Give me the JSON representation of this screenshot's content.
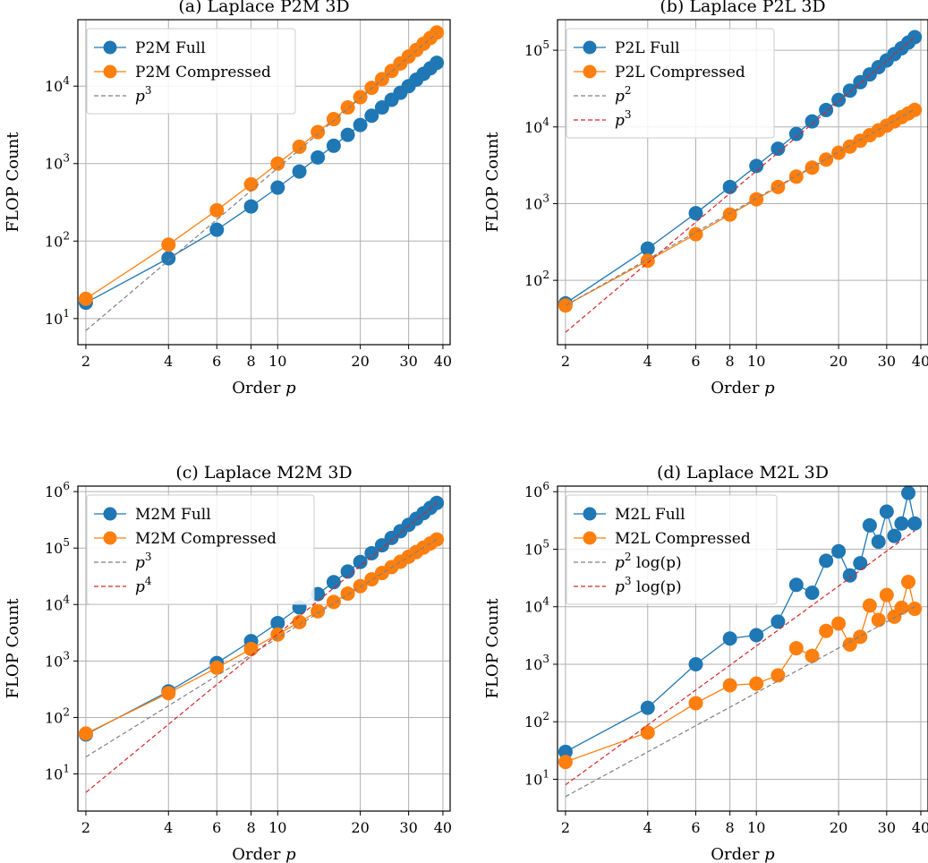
{
  "chart_data": [
    {
      "type": "line",
      "title": "(a) Laplace P2M 3D",
      "xlabel": "Order p",
      "ylabel": "FLOP Count",
      "xscale": "log",
      "yscale": "log",
      "xlim": [
        1.87,
        42.5
      ],
      "ylim": [
        4.6,
        72000
      ],
      "xticks": [
        {
          "value": 2,
          "label": "2"
        },
        {
          "value": 4,
          "label": "4"
        },
        {
          "value": 6,
          "label": "6"
        },
        {
          "value": 8,
          "label": "8"
        },
        {
          "value": 10,
          "label": "10"
        },
        {
          "value": 20,
          "label": "20"
        },
        {
          "value": 30,
          "label": "30"
        },
        {
          "value": 40,
          "label": "40"
        }
      ],
      "yticks": [
        {
          "value": 10,
          "base": "10",
          "exp": "1"
        },
        {
          "value": 100,
          "base": "10",
          "exp": "2"
        },
        {
          "value": 1000,
          "base": "10",
          "exp": "3"
        },
        {
          "value": 10000,
          "base": "10",
          "exp": "4"
        }
      ],
      "grid": true,
      "legend_position": "top-left",
      "x": [
        2,
        4,
        6,
        8,
        10,
        12,
        14,
        16,
        18,
        20,
        22,
        24,
        26,
        28,
        30,
        32,
        34,
        36,
        38
      ],
      "series": [
        {
          "name": "P2M Full",
          "style": "marker",
          "color": "#1f77b4",
          "values": [
            16,
            60,
            140,
            280,
            490,
            790,
            1200,
            1700,
            2350,
            3150,
            4150,
            5300,
            6650,
            8200,
            10000,
            12100,
            14400,
            17000,
            20000
          ]
        },
        {
          "name": "P2M Compressed",
          "style": "marker",
          "color": "#ff7f0e",
          "values": [
            18,
            90,
            250,
            540,
            1000,
            1650,
            2550,
            3750,
            5300,
            7200,
            9500,
            12300,
            15700,
            19600,
            24100,
            29300,
            35200,
            41800,
            49200
          ]
        },
        {
          "name": "p",
          "sup": "3",
          "style": "dashed",
          "color": "#808080",
          "x": [
            2,
            38
          ],
          "values": [
            7,
            48000
          ]
        }
      ]
    },
    {
      "type": "line",
      "title": "(b) Laplace P2L 3D",
      "xlabel": "Order p",
      "ylabel": "FLOP Count",
      "xscale": "log",
      "yscale": "log",
      "xlim": [
        1.87,
        42.5
      ],
      "ylim": [
        14.5,
        250000
      ],
      "xticks": [
        {
          "value": 2,
          "label": "2"
        },
        {
          "value": 4,
          "label": "4"
        },
        {
          "value": 6,
          "label": "6"
        },
        {
          "value": 8,
          "label": "8"
        },
        {
          "value": 10,
          "label": "10"
        },
        {
          "value": 20,
          "label": "20"
        },
        {
          "value": 30,
          "label": "30"
        },
        {
          "value": 40,
          "label": "40"
        }
      ],
      "yticks": [
        {
          "value": 100,
          "base": "10",
          "exp": "2"
        },
        {
          "value": 1000,
          "base": "10",
          "exp": "3"
        },
        {
          "value": 10000,
          "base": "10",
          "exp": "4"
        },
        {
          "value": 100000,
          "base": "10",
          "exp": "5"
        }
      ],
      "grid": true,
      "legend_position": "top-left",
      "x": [
        2,
        4,
        6,
        8,
        10,
        12,
        14,
        16,
        18,
        20,
        22,
        24,
        26,
        28,
        30,
        32,
        34,
        36,
        38
      ],
      "series": [
        {
          "name": "P2L Full",
          "style": "marker",
          "color": "#1f77b4",
          "values": [
            50,
            260,
            750,
            1650,
            3100,
            5200,
            8100,
            11800,
            16600,
            22500,
            29700,
            38300,
            48400,
            60200,
            73700,
            89000,
            106000,
            126000,
            148000
          ]
        },
        {
          "name": "P2L Compressed",
          "style": "marker",
          "color": "#ff7f0e",
          "values": [
            47,
            180,
            400,
            720,
            1140,
            1650,
            2250,
            2950,
            3750,
            4600,
            5550,
            6600,
            7800,
            9050,
            10400,
            11800,
            13400,
            15000,
            16700
          ]
        },
        {
          "name": "p",
          "sup": "2",
          "style": "dashed",
          "color": "#808080",
          "x": [
            2,
            38
          ],
          "values": [
            47,
            17000
          ]
        },
        {
          "name": "p",
          "sup": "3",
          "style": "dashed",
          "color": "#d62728",
          "x": [
            2,
            38
          ],
          "values": [
            21,
            148000
          ]
        }
      ]
    },
    {
      "type": "line",
      "title": "(c) Laplace M2M 3D",
      "xlabel": "Order p",
      "ylabel": "FLOP Count",
      "xscale": "log",
      "yscale": "log",
      "xlim": [
        1.87,
        42.5
      ],
      "ylim": [
        2.2,
        1250000
      ],
      "xticks": [
        {
          "value": 2,
          "label": "2"
        },
        {
          "value": 4,
          "label": "4"
        },
        {
          "value": 6,
          "label": "6"
        },
        {
          "value": 8,
          "label": "8"
        },
        {
          "value": 10,
          "label": "10"
        },
        {
          "value": 20,
          "label": "20"
        },
        {
          "value": 30,
          "label": "30"
        },
        {
          "value": 40,
          "label": "40"
        }
      ],
      "yticks": [
        {
          "value": 10,
          "base": "10",
          "exp": "1"
        },
        {
          "value": 100,
          "base": "10",
          "exp": "2"
        },
        {
          "value": 1000,
          "base": "10",
          "exp": "3"
        },
        {
          "value": 10000,
          "base": "10",
          "exp": "4"
        },
        {
          "value": 100000,
          "base": "10",
          "exp": "5"
        },
        {
          "value": 1000000,
          "base": "10",
          "exp": "6"
        }
      ],
      "grid": true,
      "legend_position": "top-left",
      "x": [
        2,
        4,
        6,
        8,
        10,
        12,
        14,
        16,
        18,
        20,
        22,
        24,
        26,
        28,
        30,
        32,
        34,
        36,
        38
      ],
      "series": [
        {
          "name": "M2M Full",
          "style": "marker",
          "color": "#1f77b4",
          "values": [
            50,
            290,
            920,
            2250,
            4700,
            8900,
            15300,
            24900,
            38400,
            56700,
            81000,
            112000,
            151000,
            199000,
            258000,
            330000,
            415000,
            515000,
            630000
          ]
        },
        {
          "name": "M2M Compressed",
          "style": "marker",
          "color": "#ff7f0e",
          "values": [
            52,
            270,
            760,
            1630,
            2950,
            4900,
            7600,
            11100,
            15600,
            21200,
            28000,
            36200,
            45900,
            57200,
            70300,
            85200,
            102000,
            121000,
            142000
          ]
        },
        {
          "name": "p",
          "sup": "3",
          "style": "dashed",
          "color": "#808080",
          "x": [
            2,
            38
          ],
          "values": [
            20,
            142000
          ]
        },
        {
          "name": "p",
          "sup": "4",
          "style": "dashed",
          "color": "#d62728",
          "x": [
            2,
            38
          ],
          "values": [
            4.7,
            630000
          ]
        }
      ]
    },
    {
      "type": "line",
      "title": "(d) Laplace M2L 3D",
      "xlabel": "Order p",
      "ylabel": "FLOP Count",
      "xscale": "log",
      "yscale": "log",
      "xlim": [
        1.87,
        42.5
      ],
      "ylim": [
        2.8,
        1250000
      ],
      "xticks": [
        {
          "value": 2,
          "label": "2"
        },
        {
          "value": 4,
          "label": "4"
        },
        {
          "value": 6,
          "label": "6"
        },
        {
          "value": 8,
          "label": "8"
        },
        {
          "value": 10,
          "label": "10"
        },
        {
          "value": 20,
          "label": "20"
        },
        {
          "value": 30,
          "label": "30"
        },
        {
          "value": 40,
          "label": "40"
        }
      ],
      "yticks": [
        {
          "value": 10,
          "base": "10",
          "exp": "1"
        },
        {
          "value": 100,
          "base": "10",
          "exp": "2"
        },
        {
          "value": 1000,
          "base": "10",
          "exp": "3"
        },
        {
          "value": 10000,
          "base": "10",
          "exp": "4"
        },
        {
          "value": 100000,
          "base": "10",
          "exp": "5"
        },
        {
          "value": 1000000,
          "base": "10",
          "exp": "6"
        }
      ],
      "grid": true,
      "legend_position": "top-left",
      "x": [
        2,
        4,
        6,
        8,
        10,
        12,
        14,
        16,
        18,
        20,
        22,
        24,
        26,
        28,
        30,
        32,
        34,
        36,
        38
      ],
      "series": [
        {
          "name": "M2L Full",
          "style": "marker",
          "color": "#1f77b4",
          "values": [
            30,
            175,
            1000,
            2800,
            3200,
            5500,
            24000,
            17500,
            63000,
            92000,
            35000,
            57000,
            260000,
            135000,
            450000,
            170000,
            280000,
            950000,
            280000
          ]
        },
        {
          "name": "M2L Compressed",
          "style": "marker",
          "color": "#ff7f0e",
          "values": [
            20,
            65,
            210,
            430,
            460,
            640,
            1900,
            1400,
            3800,
            5100,
            2200,
            3000,
            10500,
            5900,
            16000,
            6700,
            9600,
            27000,
            9200
          ]
        },
        {
          "name": "p",
          "sup": "2",
          "suffix": " log(p)",
          "style": "dashed",
          "color": "#808080",
          "x": [
            2,
            38
          ],
          "values": [
            5,
            10000
          ]
        },
        {
          "name": "p",
          "sup": "3",
          "suffix": " log(p)",
          "style": "dashed",
          "color": "#d62728",
          "x": [
            2,
            38
          ],
          "values": [
            8,
            210000
          ]
        }
      ]
    }
  ]
}
